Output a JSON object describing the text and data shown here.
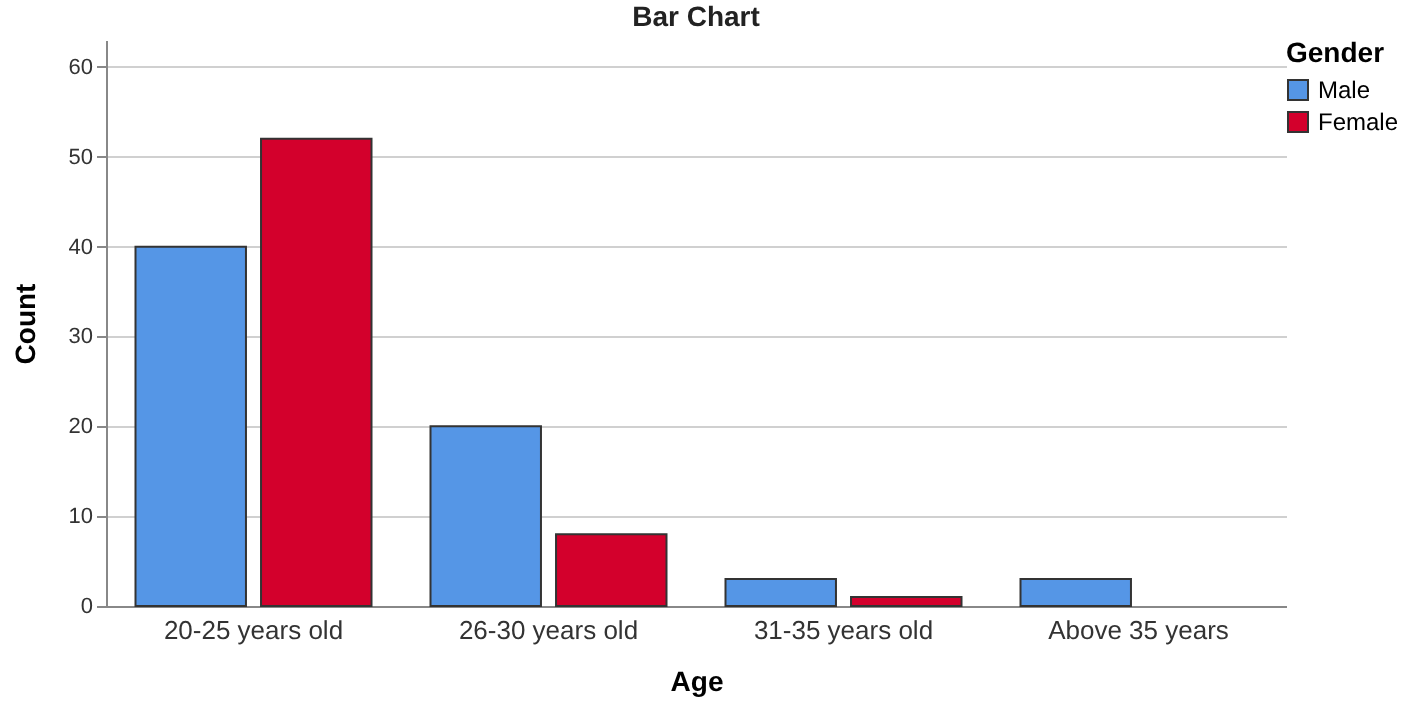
{
  "chart_data": {
    "type": "bar",
    "title": "Bar Chart",
    "xlabel": "Age",
    "ylabel": "Count",
    "legend_title": "Gender",
    "categories": [
      "20-25 years old",
      "26-30 years old",
      "31-35 years old",
      "Above 35 years"
    ],
    "series": [
      {
        "name": "Male",
        "color": "#5596e6",
        "values": [
          40,
          20,
          3,
          3
        ]
      },
      {
        "name": "Female",
        "color": "#d3002c",
        "values": [
          52,
          8,
          1,
          null
        ]
      }
    ],
    "ylim": [
      0,
      63
    ],
    "yticks": [
      0,
      10,
      20,
      30,
      40,
      50,
      60
    ],
    "grid": "y",
    "legend": "top right"
  }
}
